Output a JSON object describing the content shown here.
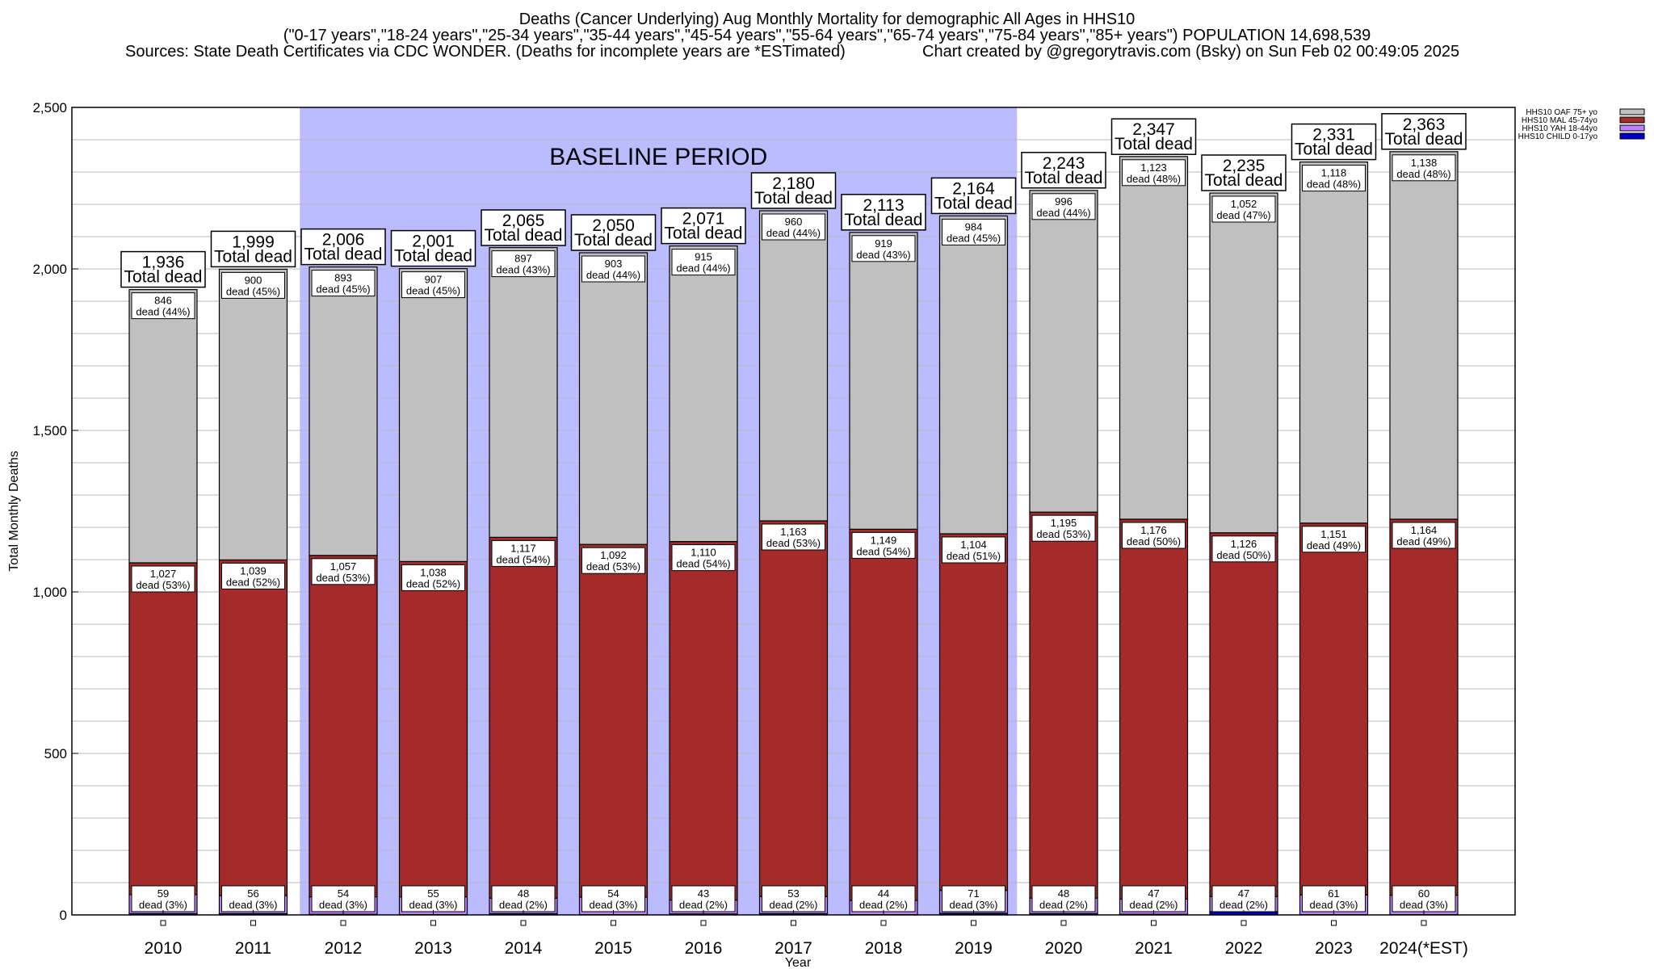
{
  "title_lines": [
    "Deaths (Cancer Underlying) Aug Monthly Mortality for demographic All Ages in HHS10",
    "(\"0-17 years\",\"18-24 years\",\"25-34 years\",\"35-44 years\",\"45-54 years\",\"55-64 years\",\"65-74 years\",\"75-84 years\",\"85+ years\") POPULATION 14,698,539"
  ],
  "sources_text": "Sources: State Death Certificates via CDC WONDER. (Deaths for incomplete years are *ESTimated)",
  "credit_text": "Chart created by @gregorytravis.com (Bsky) on Sun Feb 02 00:49:05 2025",
  "baseline_label": "BASELINE PERIOD",
  "total_dead_label": "Total dead",
  "dead_word": "dead",
  "colors": {
    "OAF": "#c0c0c0",
    "MAL": "#a52a2a",
    "YAH": "#c080ff",
    "CHILD": "#0000cd",
    "baseline": "#bbbbff"
  },
  "chart_data": {
    "type": "bar",
    "stacked": true,
    "xlabel": "Year",
    "ylabel": "Total Monthly Deaths",
    "ylim": [
      0,
      2500
    ],
    "yticks": [
      0,
      500,
      1000,
      1500,
      2000,
      2500
    ],
    "ytick_labels": [
      "0",
      "500",
      "1,000",
      "1,500",
      "2,000",
      "2,500"
    ],
    "grid": true,
    "legend_position": "top-right",
    "baseline_period": [
      "2012",
      "2019"
    ],
    "categories": [
      "2010",
      "2011",
      "2012",
      "2013",
      "2014",
      "2015",
      "2016",
      "2017",
      "2018",
      "2019",
      "2020",
      "2021",
      "2022",
      "2023",
      "2024(*EST)"
    ],
    "totals": [
      1936,
      1999,
      2006,
      2001,
      2065,
      2050,
      2071,
      2180,
      2113,
      2164,
      2243,
      2347,
      2235,
      2331,
      2363
    ],
    "total_labels": [
      "1,936",
      "1,999",
      "2,006",
      "2,001",
      "2,065",
      "2,050",
      "2,071",
      "2,180",
      "2,113",
      "2,164",
      "2,243",
      "2,347",
      "2,235",
      "2,331",
      "2,363"
    ],
    "series": [
      {
        "key": "CHILD",
        "name": "HHS10 CHILD 0-17yo",
        "values": [
          4,
          4,
          2,
          1,
          4,
          1,
          3,
          4,
          1,
          5,
          4,
          2,
          10,
          1,
          1
        ]
      },
      {
        "key": "YAH",
        "name": "HHS10 YAH 18-44yo",
        "values": [
          59,
          56,
          54,
          55,
          48,
          54,
          43,
          53,
          44,
          71,
          48,
          47,
          47,
          61,
          60
        ],
        "labels": [
          "59",
          "56",
          "54",
          "55",
          "48",
          "54",
          "43",
          "53",
          "44",
          "71",
          "48",
          "47",
          "47",
          "61",
          "60"
        ],
        "pct": [
          "(3%)",
          "(3%)",
          "(3%)",
          "(3%)",
          "(2%)",
          "(3%)",
          "(2%)",
          "(2%)",
          "(2%)",
          "(3%)",
          "(2%)",
          "(2%)",
          "(2%)",
          "(3%)",
          "(3%)"
        ]
      },
      {
        "key": "MAL",
        "name": "HHS10 MAL 45-74yo",
        "values": [
          1027,
          1039,
          1057,
          1038,
          1117,
          1092,
          1110,
          1163,
          1149,
          1104,
          1195,
          1176,
          1126,
          1151,
          1164
        ],
        "labels": [
          "1,027",
          "1,039",
          "1,057",
          "1,038",
          "1,117",
          "1,092",
          "1,110",
          "1,163",
          "1,149",
          "1,104",
          "1,195",
          "1,176",
          "1,126",
          "1,151",
          "1,164"
        ],
        "pct": [
          "(53%)",
          "(52%)",
          "(53%)",
          "(52%)",
          "(54%)",
          "(53%)",
          "(54%)",
          "(53%)",
          "(54%)",
          "(51%)",
          "(53%)",
          "(50%)",
          "(50%)",
          "(49%)",
          "(49%)"
        ]
      },
      {
        "key": "OAF",
        "name": "HHS10 OAF 75+ yo",
        "values": [
          846,
          900,
          893,
          907,
          897,
          903,
          915,
          960,
          919,
          984,
          996,
          1123,
          1052,
          1118,
          1138
        ],
        "labels": [
          "846",
          "900",
          "893",
          "907",
          "897",
          "903",
          "915",
          "960",
          "919",
          "984",
          "996",
          "1,123",
          "1,052",
          "1,118",
          "1,138"
        ],
        "pct": [
          "(44%)",
          "(45%)",
          "(45%)",
          "(45%)",
          "(43%)",
          "(44%)",
          "(44%)",
          "(44%)",
          "(43%)",
          "(45%)",
          "(44%)",
          "(48%)",
          "(47%)",
          "(48%)",
          "(48%)"
        ]
      }
    ],
    "legend_order": [
      "OAF",
      "MAL",
      "YAH",
      "CHILD"
    ]
  }
}
